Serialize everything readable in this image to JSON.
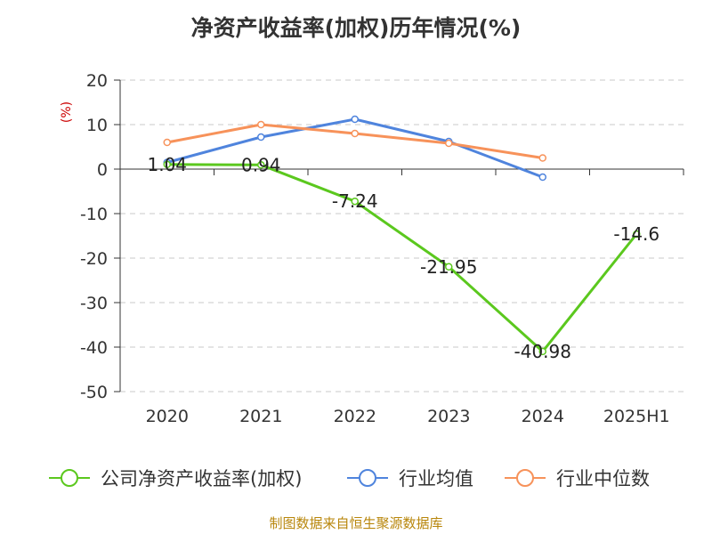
{
  "title": "净资产收益率(加权)历年情况(%)",
  "source": "制图数据来自恒生聚源数据库",
  "chart_data": {
    "type": "line",
    "title": "净资产收益率(加权)历年情况(%)",
    "ylabel": "(%)",
    "xlabel": "",
    "categories": [
      "2020",
      "2021",
      "2022",
      "2023",
      "2024",
      "2025H1"
    ],
    "ylim": [
      -50,
      20
    ],
    "yticks": [
      20,
      10,
      0,
      -10,
      -20,
      -30,
      -40,
      -50
    ],
    "grid": true,
    "legend": "bottom",
    "series": [
      {
        "name": "公司净资产收益率(加权)",
        "color": "#5bc81e",
        "values": [
          1.04,
          0.94,
          -7.24,
          -21.95,
          -40.98,
          -14.6
        ],
        "labels": [
          "1.04",
          "0.94",
          "-7.24",
          "-21.95",
          "-40.98",
          "-14.6"
        ]
      },
      {
        "name": "行业均值",
        "color": "#4f84dd",
        "values": [
          1.5,
          7.2,
          11.2,
          6.2,
          -1.8,
          null
        ]
      },
      {
        "name": "行业中位数",
        "color": "#f7925a",
        "values": [
          6.0,
          10.0,
          8.0,
          5.8,
          2.5,
          null
        ]
      }
    ]
  }
}
